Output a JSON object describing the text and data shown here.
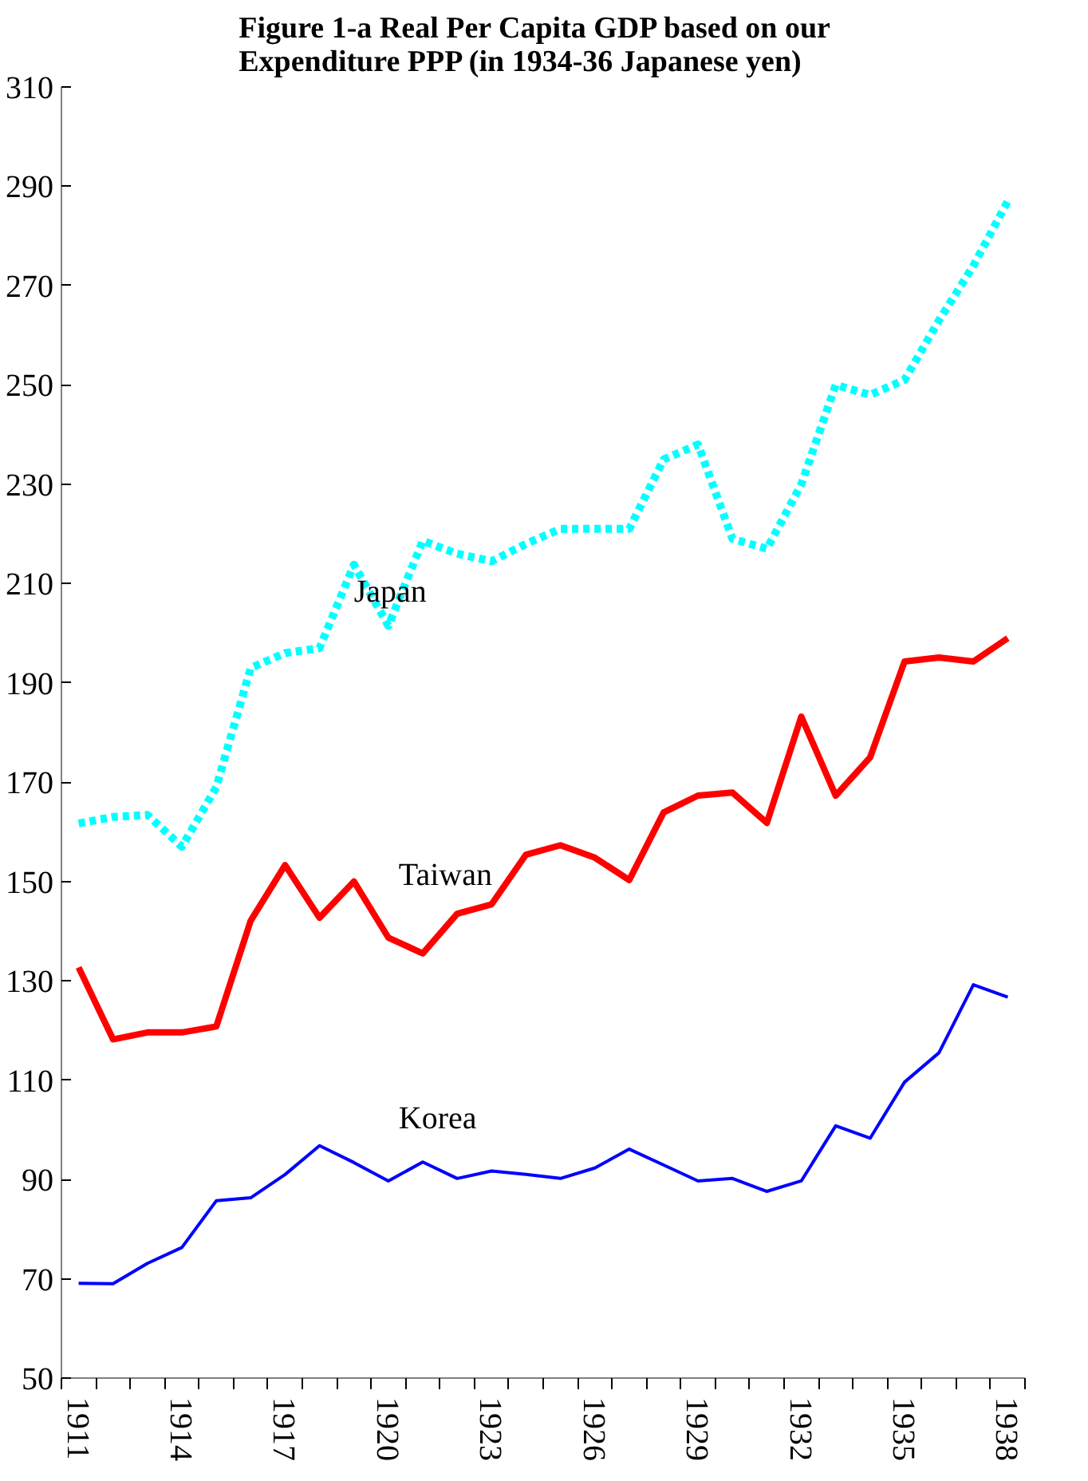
{
  "chart_data": {
    "type": "line",
    "title": "Figure 1-a   Real Per Capita GDP based on our\nExpenditure PPP (in 1934-36 Japanese yen)",
    "categories": [
      "1911",
      null,
      null,
      "1914",
      null,
      null,
      "1917",
      null,
      null,
      "1920",
      null,
      null,
      "1923",
      null,
      null,
      "1926",
      null,
      null,
      "1929",
      null,
      null,
      "1932",
      null,
      null,
      "1935",
      null,
      null,
      "1938"
    ],
    "series": [
      {
        "name": "Japan",
        "color": "#00ffff",
        "line_style": "dashed",
        "values": [
          161.7,
          163,
          163.4,
          157,
          169,
          193,
          196,
          197,
          213.8,
          201.5,
          218.6,
          216,
          214.5,
          218,
          221,
          221,
          221,
          235,
          238,
          219,
          217,
          230,
          250,
          248,
          251,
          263,
          274,
          287
        ]
      },
      {
        "name": "Taiwan",
        "color": "#ff0000",
        "line_style": "solid",
        "values": [
          132.7,
          118.2,
          119.6,
          119.6,
          120.8,
          142.1,
          153.3,
          142.7,
          150,
          138.7,
          135.5,
          143.5,
          145.4,
          155.4,
          157.3,
          154.8,
          150.3,
          163.9,
          167.3,
          167.9,
          161.8,
          183.2,
          167.3,
          175,
          194.3,
          195.1,
          194.3,
          199
        ]
      },
      {
        "name": "Korea",
        "color": "#0000ff",
        "line_style": "solid",
        "values": [
          69.1,
          69,
          73.1,
          76.3,
          85.7,
          86.3,
          91,
          96.8,
          93.4,
          89.7,
          93.5,
          90.2,
          91.7,
          91,
          90.2,
          92.3,
          96.1,
          92.9,
          89.7,
          90.2,
          87.6,
          89.7,
          100.8,
          98.3,
          109.6,
          115.5,
          129.2,
          126.7
        ]
      }
    ],
    "ylim": [
      50,
      310
    ],
    "yticks": [
      50,
      70,
      90,
      110,
      130,
      150,
      170,
      190,
      210,
      230,
      250,
      270,
      290,
      310
    ],
    "grid": false,
    "marker": "none"
  }
}
